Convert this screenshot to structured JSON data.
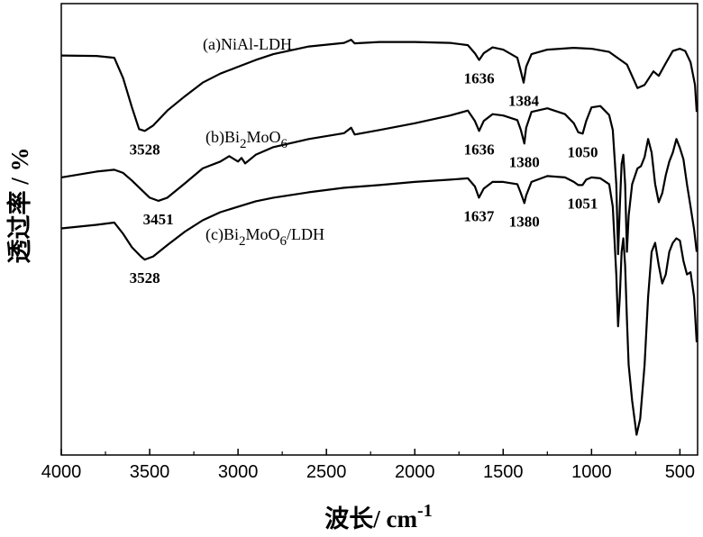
{
  "chart_data": {
    "type": "line",
    "xlabel": "波长/ cm",
    "xlabel_sup": "-1",
    "ylabel": "透过率 / %",
    "xlim": [
      4000,
      400
    ],
    "x_reversed": true,
    "ylim": [
      0,
      100
    ],
    "grid": false,
    "xticks": [
      4000,
      3500,
      3000,
      2500,
      2000,
      1500,
      1000,
      500
    ],
    "series": [
      {
        "name": "(a)NiAl-LDH",
        "label_parts": [
          {
            "t": "(a)NiAl-LDH"
          }
        ],
        "x": [
          4000,
          3800,
          3700,
          3650,
          3600,
          3560,
          3528,
          3480,
          3400,
          3300,
          3200,
          3100,
          3000,
          2900,
          2800,
          2600,
          2400,
          2360,
          2340,
          2200,
          2000,
          1800,
          1700,
          1660,
          1636,
          1610,
          1560,
          1500,
          1420,
          1400,
          1384,
          1370,
          1340,
          1250,
          1100,
          1000,
          900,
          800,
          740,
          700,
          650,
          620,
          580,
          540,
          500,
          470,
          440,
          415,
          405
        ],
        "y": [
          88.5,
          88.4,
          88.0,
          83.5,
          77.0,
          72.2,
          71.8,
          73.0,
          76.3,
          79.5,
          82.5,
          84.5,
          86.0,
          87.5,
          88.8,
          90.5,
          91.3,
          92.0,
          91.2,
          91.5,
          91.5,
          91.3,
          90.8,
          89.0,
          87.5,
          89.0,
          90.3,
          89.8,
          88.0,
          85.0,
          82.5,
          86.0,
          88.8,
          89.8,
          90.2,
          90.0,
          89.3,
          86.5,
          81.3,
          82.0,
          85.0,
          84.0,
          86.8,
          89.5,
          90.0,
          89.5,
          87.0,
          82.0,
          76.0
        ]
      },
      {
        "name": "(b)Bi2MoO6",
        "label_parts": [
          {
            "t": "(b)Bi"
          },
          {
            "t": "2",
            "sub": true
          },
          {
            "t": "MoO"
          },
          {
            "t": "6",
            "sub": true
          }
        ],
        "x": [
          4000,
          3800,
          3700,
          3650,
          3600,
          3500,
          3451,
          3400,
          3300,
          3200,
          3100,
          3050,
          3000,
          2980,
          2960,
          2900,
          2800,
          2600,
          2400,
          2360,
          2340,
          2200,
          2000,
          1800,
          1700,
          1660,
          1636,
          1610,
          1560,
          1500,
          1420,
          1400,
          1380,
          1370,
          1340,
          1250,
          1150,
          1100,
          1075,
          1050,
          1030,
          1000,
          950,
          900,
          880,
          860,
          850,
          840,
          830,
          820,
          810,
          800,
          790,
          770,
          740,
          720,
          700,
          680,
          660,
          640,
          620,
          600,
          580,
          560,
          540,
          520,
          500,
          480,
          460,
          440,
          420,
          405
        ],
        "y": [
          61.5,
          62.8,
          63.2,
          62.5,
          60.8,
          57.0,
          56.3,
          57.0,
          60.2,
          63.5,
          65.0,
          66.2,
          65.0,
          65.8,
          64.6,
          66.5,
          68.2,
          70.0,
          71.3,
          72.5,
          71.0,
          72.0,
          73.5,
          75.2,
          76.3,
          74.0,
          71.8,
          74.0,
          75.5,
          75.2,
          74.2,
          72.0,
          69.0,
          72.5,
          76.0,
          76.8,
          75.5,
          73.5,
          71.5,
          71.2,
          74.0,
          77.0,
          77.3,
          75.3,
          72.0,
          60.0,
          44.5,
          55.0,
          64.5,
          66.5,
          60.0,
          45.0,
          53.0,
          60.0,
          63.5,
          64.0,
          66.0,
          70.0,
          67.0,
          60.0,
          56.0,
          58.0,
          62.0,
          65.0,
          67.0,
          70.0,
          68.0,
          65.5,
          60.0,
          55.0,
          50.0,
          45.0
        ]
      },
      {
        "name": "(c)Bi2MoO6/LDH",
        "label_parts": [
          {
            "t": "(c)Bi"
          },
          {
            "t": "2",
            "sub": true
          },
          {
            "t": "MoO"
          },
          {
            "t": "6",
            "sub": true
          },
          {
            "t": "/LDH"
          }
        ],
        "x": [
          4000,
          3800,
          3700,
          3650,
          3600,
          3550,
          3528,
          3480,
          3400,
          3300,
          3200,
          3100,
          3000,
          2900,
          2800,
          2600,
          2400,
          2200,
          2000,
          1800,
          1700,
          1660,
          1637,
          1610,
          1560,
          1500,
          1420,
          1400,
          1380,
          1370,
          1340,
          1250,
          1150,
          1100,
          1075,
          1051,
          1030,
          1000,
          950,
          900,
          880,
          860,
          850,
          840,
          830,
          820,
          810,
          800,
          790,
          770,
          745,
          725,
          700,
          680,
          660,
          640,
          620,
          600,
          580,
          560,
          540,
          520,
          500,
          480,
          460,
          440,
          420,
          405
        ],
        "y": [
          50.2,
          51.0,
          51.5,
          49.0,
          46.0,
          44.0,
          43.3,
          44.0,
          46.5,
          49.5,
          52.0,
          53.8,
          55.0,
          56.2,
          57.0,
          58.2,
          59.2,
          59.8,
          60.5,
          61.0,
          61.3,
          59.5,
          57.0,
          59.0,
          60.5,
          60.5,
          60.0,
          58.0,
          55.8,
          57.5,
          60.5,
          61.8,
          61.5,
          60.5,
          59.8,
          59.8,
          61.0,
          61.5,
          61.3,
          60.0,
          55.0,
          40.0,
          28.5,
          35.0,
          45.0,
          48.0,
          42.0,
          30.0,
          20.0,
          12.0,
          4.5,
          8.0,
          20.0,
          35.0,
          45.0,
          47.0,
          42.0,
          38.0,
          40.0,
          45.0,
          47.0,
          48.0,
          47.5,
          43.0,
          40.0,
          40.5,
          35.0,
          25.0
        ]
      }
    ],
    "annotations": [
      {
        "series": 0,
        "x": 3528,
        "text": "3528"
      },
      {
        "series": 0,
        "x": 1636,
        "text": "1636"
      },
      {
        "series": 0,
        "x": 1384,
        "text": "1384"
      },
      {
        "series": 1,
        "x": 3451,
        "text": "3451"
      },
      {
        "series": 1,
        "x": 1636,
        "text": "1636"
      },
      {
        "series": 1,
        "x": 1380,
        "text": "1380"
      },
      {
        "series": 1,
        "x": 1050,
        "text": "1050"
      },
      {
        "series": 2,
        "x": 3528,
        "text": "3528"
      },
      {
        "series": 2,
        "x": 1637,
        "text": "1637"
      },
      {
        "series": 2,
        "x": 1380,
        "text": "1380"
      },
      {
        "series": 2,
        "x": 1051,
        "text": "1051"
      }
    ]
  }
}
